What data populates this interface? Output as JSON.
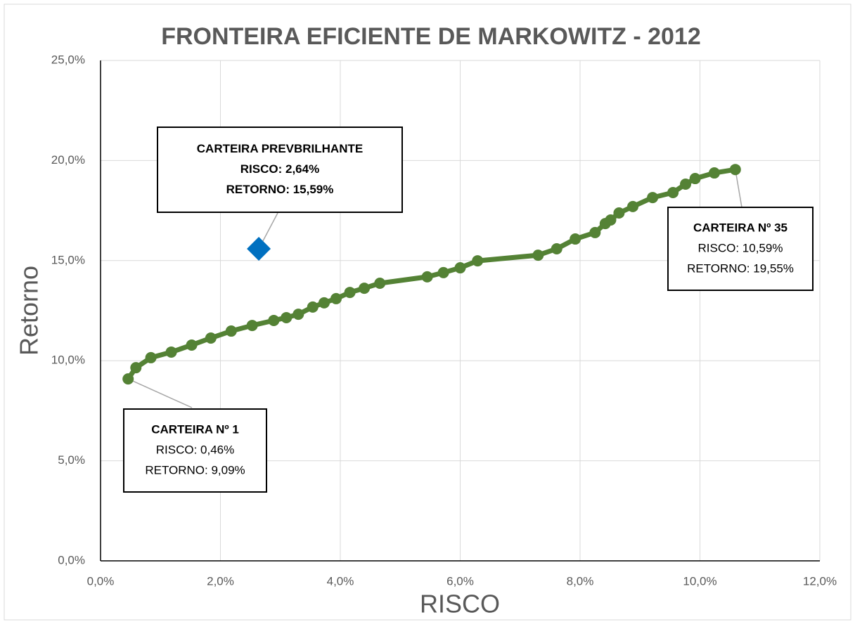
{
  "chart_data": {
    "type": "scatter",
    "title": "FRONTEIRA EFICIENTE DE MARKOWITZ - 2012",
    "x_label": "RISCO",
    "y_label": "Retorno",
    "xlim": [
      0,
      12
    ],
    "ylim": [
      0,
      25
    ],
    "xticks": [
      {
        "value": 0,
        "label": "0,0%"
      },
      {
        "value": 2,
        "label": "2,0%"
      },
      {
        "value": 4,
        "label": "4,0%"
      },
      {
        "value": 6,
        "label": "6,0%"
      },
      {
        "value": 8,
        "label": "8,0%"
      },
      {
        "value": 10,
        "label": "10,0%"
      },
      {
        "value": 12,
        "label": "12,0%"
      }
    ],
    "yticks": [
      {
        "value": 0,
        "label": "0,0%"
      },
      {
        "value": 5,
        "label": "5,0%"
      },
      {
        "value": 10,
        "label": "10,0%"
      },
      {
        "value": 15,
        "label": "15,0%"
      },
      {
        "value": 20,
        "label": "20,0%"
      },
      {
        "value": 25,
        "label": "25,0%"
      }
    ],
    "grid": true,
    "series": [
      {
        "color": "#548235",
        "marker": "circle",
        "line": true,
        "x": [
          0.46,
          0.59,
          0.84,
          1.18,
          1.52,
          1.84,
          2.18,
          2.53,
          2.89,
          3.1,
          3.3,
          3.54,
          3.73,
          3.93,
          4.16,
          4.4,
          4.66,
          5.45,
          5.72,
          6.0,
          6.29,
          7.3,
          7.61,
          7.92,
          8.25,
          8.42,
          8.51,
          8.65,
          8.88,
          9.21,
          9.55,
          9.76,
          9.92,
          10.24,
          10.59
        ],
        "values": [
          9.09,
          9.65,
          10.15,
          10.43,
          10.78,
          11.13,
          11.48,
          11.76,
          12.01,
          12.15,
          12.32,
          12.68,
          12.89,
          13.1,
          13.41,
          13.62,
          13.87,
          14.19,
          14.4,
          14.64,
          14.99,
          15.27,
          15.59,
          16.08,
          16.4,
          16.85,
          17.03,
          17.38,
          17.7,
          18.15,
          18.4,
          18.82,
          19.1,
          19.38,
          19.55
        ]
      },
      {
        "color": "#0070c0",
        "marker": "diamond",
        "line": false,
        "x": [
          2.64
        ],
        "values": [
          15.59
        ]
      }
    ],
    "annotations": [
      {
        "lines": [
          "CARTEIRA Nº 1",
          "RISCO: 0,46%",
          "RETORNO: 9,09%"
        ]
      },
      {
        "lines": [
          "CARTEIRA PREVBRILHANTE",
          "RISCO: 2,64%",
          "RETORNO: 15,59%"
        ]
      },
      {
        "lines": [
          "CARTEIRA Nº 35",
          "RISCO: 10,59%",
          "RETORNO: 19,55%"
        ]
      }
    ]
  }
}
